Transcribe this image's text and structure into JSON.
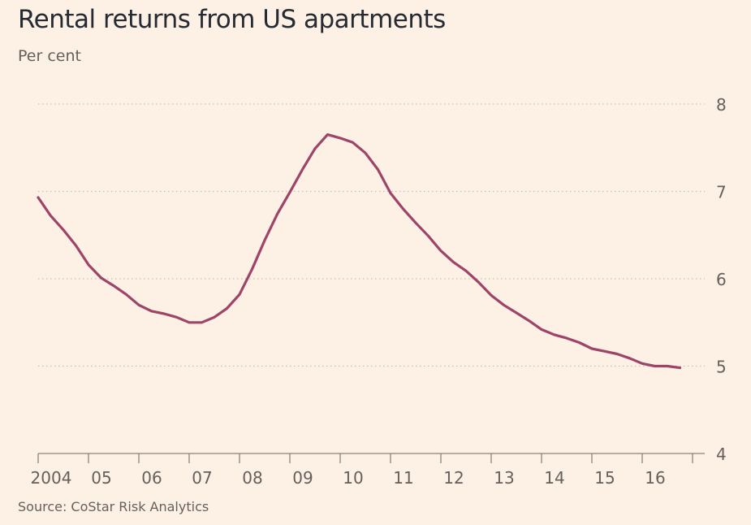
{
  "header": {
    "title": "Rental returns from US apartments",
    "subtitle": "Per cent"
  },
  "footer": {
    "source": "Source: CoStar Risk Analytics"
  },
  "colors": {
    "background": "#fdf1e5",
    "line": "#9e4468",
    "grid": "#c9bfb5",
    "text": "#66605c"
  },
  "chart_data": {
    "type": "line",
    "title": "Rental returns from US apartments",
    "subtitle": "Per cent",
    "xlabel": "",
    "ylabel": "",
    "x_tick_labels": [
      "2004",
      "05",
      "06",
      "07",
      "08",
      "09",
      "10",
      "11",
      "12",
      "13",
      "14",
      "15",
      "16"
    ],
    "x_ticks": [
      2004,
      2005,
      2006,
      2007,
      2008,
      2009,
      2010,
      2011,
      2012,
      2013,
      2014,
      2015,
      2016
    ],
    "xlim": [
      2004,
      2017
    ],
    "y_ticks": [
      4,
      5,
      6,
      7,
      8
    ],
    "ylim": [
      4,
      8
    ],
    "y_axis_side": "right",
    "grid": "horizontal dotted",
    "series": [
      {
        "color": "#9e4468",
        "x": [
          2004.0,
          2004.25,
          2004.5,
          2004.75,
          2005.0,
          2005.25,
          2005.5,
          2005.75,
          2006.0,
          2006.25,
          2006.5,
          2006.75,
          2007.0,
          2007.25,
          2007.5,
          2007.75,
          2008.0,
          2008.25,
          2008.5,
          2008.75,
          2009.0,
          2009.25,
          2009.5,
          2009.75,
          2010.0,
          2010.25,
          2010.5,
          2010.75,
          2011.0,
          2011.25,
          2011.5,
          2011.75,
          2012.0,
          2012.25,
          2012.5,
          2012.75,
          2013.0,
          2013.25,
          2013.5,
          2013.75,
          2014.0,
          2014.25,
          2014.5,
          2014.75,
          2015.0,
          2015.25,
          2015.5,
          2015.75,
          2016.0,
          2016.25,
          2016.5,
          2016.75
        ],
        "y": [
          6.93,
          6.72,
          6.56,
          6.38,
          6.16,
          6.01,
          5.92,
          5.82,
          5.7,
          5.63,
          5.6,
          5.56,
          5.5,
          5.5,
          5.56,
          5.66,
          5.82,
          6.11,
          6.44,
          6.74,
          6.99,
          7.25,
          7.49,
          7.65,
          7.61,
          7.56,
          7.44,
          7.25,
          6.98,
          6.8,
          6.64,
          6.49,
          6.32,
          6.19,
          6.09,
          5.96,
          5.81,
          5.7,
          5.61,
          5.52,
          5.42,
          5.36,
          5.32,
          5.27,
          5.2,
          5.17,
          5.14,
          5.09,
          5.03,
          5.0,
          5.0,
          4.98
        ]
      }
    ]
  }
}
